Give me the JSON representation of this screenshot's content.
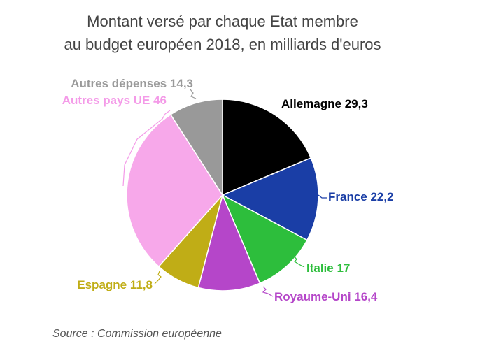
{
  "chart_data": {
    "type": "pie",
    "title": "Montant versé par chaque Etat membre au budget européen 2018, en milliards d'euros",
    "title_lines": [
      "Montant versé par chaque Etat membre",
      "au budget européen 2018, en milliards d'euros"
    ],
    "slices": [
      {
        "label": "Allemagne 29,3",
        "name": "Allemagne",
        "value": 29.3,
        "color": "#000000",
        "label_color": "#000000"
      },
      {
        "label": "France 22,2",
        "name": "France",
        "value": 22.2,
        "color": "#1a3ea6",
        "label_color": "#1a3ea6"
      },
      {
        "label": "Italie 17",
        "name": "Italie",
        "value": 17,
        "color": "#2dbe3c",
        "label_color": "#2dbe3c"
      },
      {
        "label": "Royaume-Uni 16,4",
        "name": "Royaume-Uni",
        "value": 16.4,
        "color": "#b546c9",
        "label_color": "#b546c9"
      },
      {
        "label": "Espagne 11,8",
        "name": "Espagne",
        "value": 11.8,
        "color": "#c0ad16",
        "label_color": "#c0ad16"
      },
      {
        "label": "Autres pays UE 46",
        "name": "Autres pays UE",
        "value": 46,
        "color": "#f7a8ea",
        "label_color": "#f49ae8"
      },
      {
        "label": "Autres dépenses 14,3",
        "name": "Autres dépenses",
        "value": 14.3,
        "color": "#999999",
        "label_color": "#9a9a9a"
      }
    ],
    "start_angle_deg": 0,
    "direction": "clockwise",
    "legend": "none"
  },
  "source": {
    "prefix": "Source : ",
    "link_text": "Commission européenne"
  }
}
